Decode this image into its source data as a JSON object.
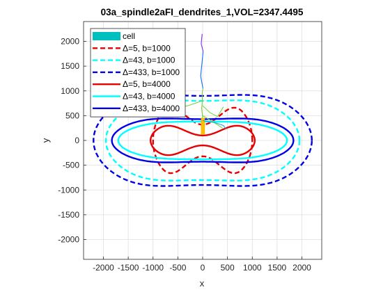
{
  "chart_data": {
    "type": "line",
    "title": "03a_spindle2aFI_dendrites_1,VOL=2347.4495",
    "xlabel": "x",
    "ylabel": "y",
    "xlim": [
      -2400,
      2400
    ],
    "ylim": [
      -2400,
      2400
    ],
    "xticks": [
      -2000,
      -1500,
      -1000,
      -500,
      0,
      500,
      1000,
      1500,
      2000
    ],
    "yticks": [
      -2000,
      -1500,
      -1000,
      -500,
      0,
      500,
      1000,
      1500,
      2000
    ],
    "xtick_labels": [
      "-2000",
      "-1500",
      "-1000",
      "-500",
      "0",
      "500",
      "1000",
      "1500",
      "2000"
    ],
    "ytick_labels": [
      "-2000",
      "-1500",
      "-1000",
      "-500",
      "0",
      "500",
      "1000",
      "1500",
      "2000"
    ],
    "grid": true,
    "legend_position": "top-left",
    "series": [
      {
        "name": "cell",
        "kind": "morphology",
        "color": "#00BFBF",
        "soma": [
          [
            -30,
            120
          ],
          [
            40,
            120
          ],
          [
            40,
            450
          ],
          [
            -30,
            450
          ]
        ],
        "branches": [
          {
            "color": "#FFBE00",
            "points": [
              [
                0,
                130
              ],
              [
                -10,
                300
              ],
              [
                0,
                450
              ]
            ]
          },
          {
            "color": "#7BD335",
            "points": [
              [
                0,
                450
              ],
              [
                -20,
                650
              ],
              [
                -5,
                800
              ],
              [
                -10,
                950
              ],
              [
                5,
                1050
              ]
            ]
          },
          {
            "color": "#7BD335",
            "points": [
              [
                0,
                700
              ],
              [
                150,
                560
              ],
              [
                300,
                480
              ],
              [
                420,
                680
              ]
            ]
          },
          {
            "color": "#7BD335",
            "points": [
              [
                -5,
                800
              ],
              [
                -300,
                700
              ],
              [
                -600,
                640
              ],
              [
                -800,
                700
              ]
            ]
          },
          {
            "color": "#7BD335",
            "points": [
              [
                0,
                500
              ],
              [
                200,
                380
              ],
              [
                400,
                250
              ]
            ]
          },
          {
            "color": "#12A7E8",
            "points": [
              [
                0,
                400
              ],
              [
                250,
                360
              ],
              [
                420,
                300
              ],
              [
                470,
                230
              ]
            ]
          },
          {
            "color": "#0C6FFF",
            "points": [
              [
                5,
                1050
              ],
              [
                -40,
                1300
              ],
              [
                -20,
                1500
              ],
              [
                10,
                1800
              ]
            ]
          },
          {
            "color": "#7E2FF0",
            "points": [
              [
                10,
                1800
              ],
              [
                -30,
                1950
              ],
              [
                -10,
                2150
              ]
            ]
          }
        ]
      },
      {
        "name": "Δ=5, b=1000",
        "color": "#E60000",
        "style": "dashed",
        "a": 1000,
        "b": 1000,
        "neck": 320
      },
      {
        "name": "Δ=43, b=1000",
        "color": "#00FFFF",
        "style": "dashed",
        "a": 1950,
        "b": 1000,
        "neck": 800
      },
      {
        "name": "Δ=433, b=1000",
        "color": "#0000E6",
        "style": "dashed",
        "a": 2200,
        "b": 1150,
        "neck": 900
      },
      {
        "name": "Δ=5, b=4000",
        "color": "#E60000",
        "style": "solid",
        "a": 1050,
        "b": 460,
        "neck": 100
      },
      {
        "name": "Δ=43, b=4000",
        "color": "#00FFFF",
        "style": "solid",
        "a": 1700,
        "b": 440,
        "neck": 380
      },
      {
        "name": "Δ=433, b=4000",
        "color": "#0000E6",
        "style": "solid",
        "a": 1830,
        "b": 560,
        "neck": 430
      }
    ]
  }
}
